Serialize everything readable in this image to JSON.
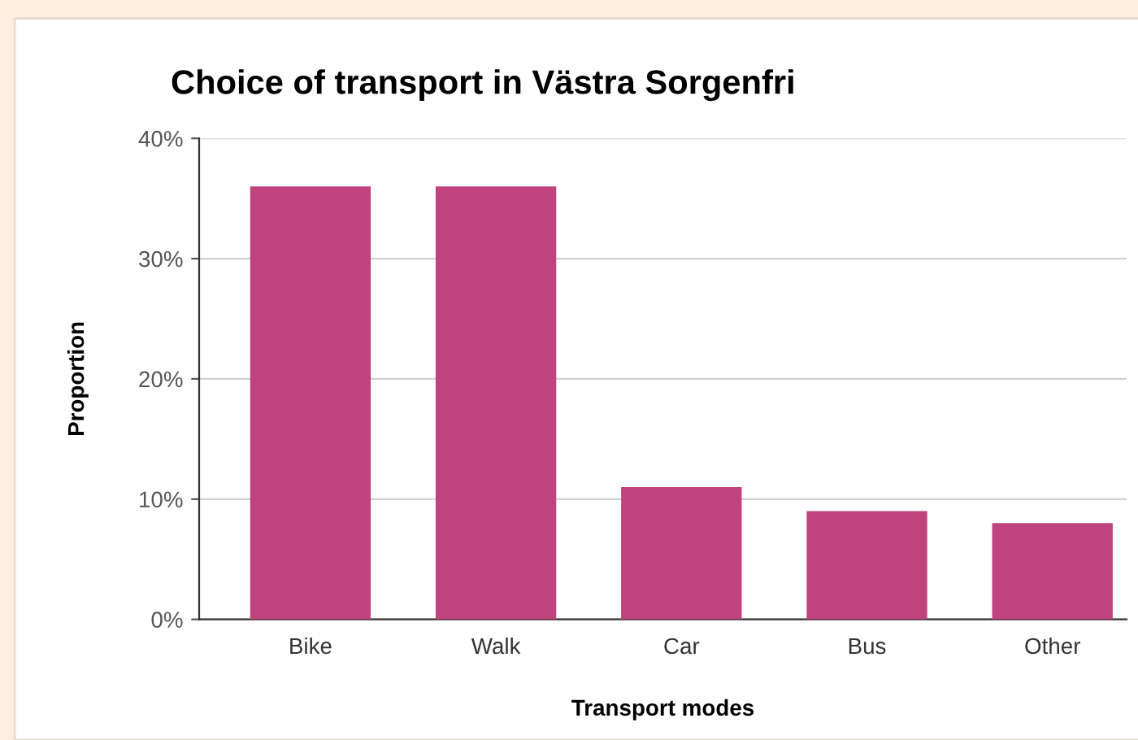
{
  "chart_data": {
    "type": "bar",
    "title": "Choice of transport in Västra Sorgenfri",
    "xlabel": "Transport modes",
    "ylabel": "Proportion",
    "categories": [
      "Bike",
      "Walk",
      "Car",
      "Bus",
      "Other"
    ],
    "values": [
      36,
      36,
      11,
      9,
      8
    ],
    "color": "#bf437c",
    "ylim": [
      0,
      40
    ],
    "yticks": [
      {
        "value": 0,
        "label": "0%"
      },
      {
        "value": 10,
        "label": "10%"
      },
      {
        "value": 20,
        "label": "20%"
      },
      {
        "value": 30,
        "label": "30%"
      },
      {
        "value": 40,
        "label": "40%"
      }
    ],
    "grid": "y",
    "legend": false
  }
}
